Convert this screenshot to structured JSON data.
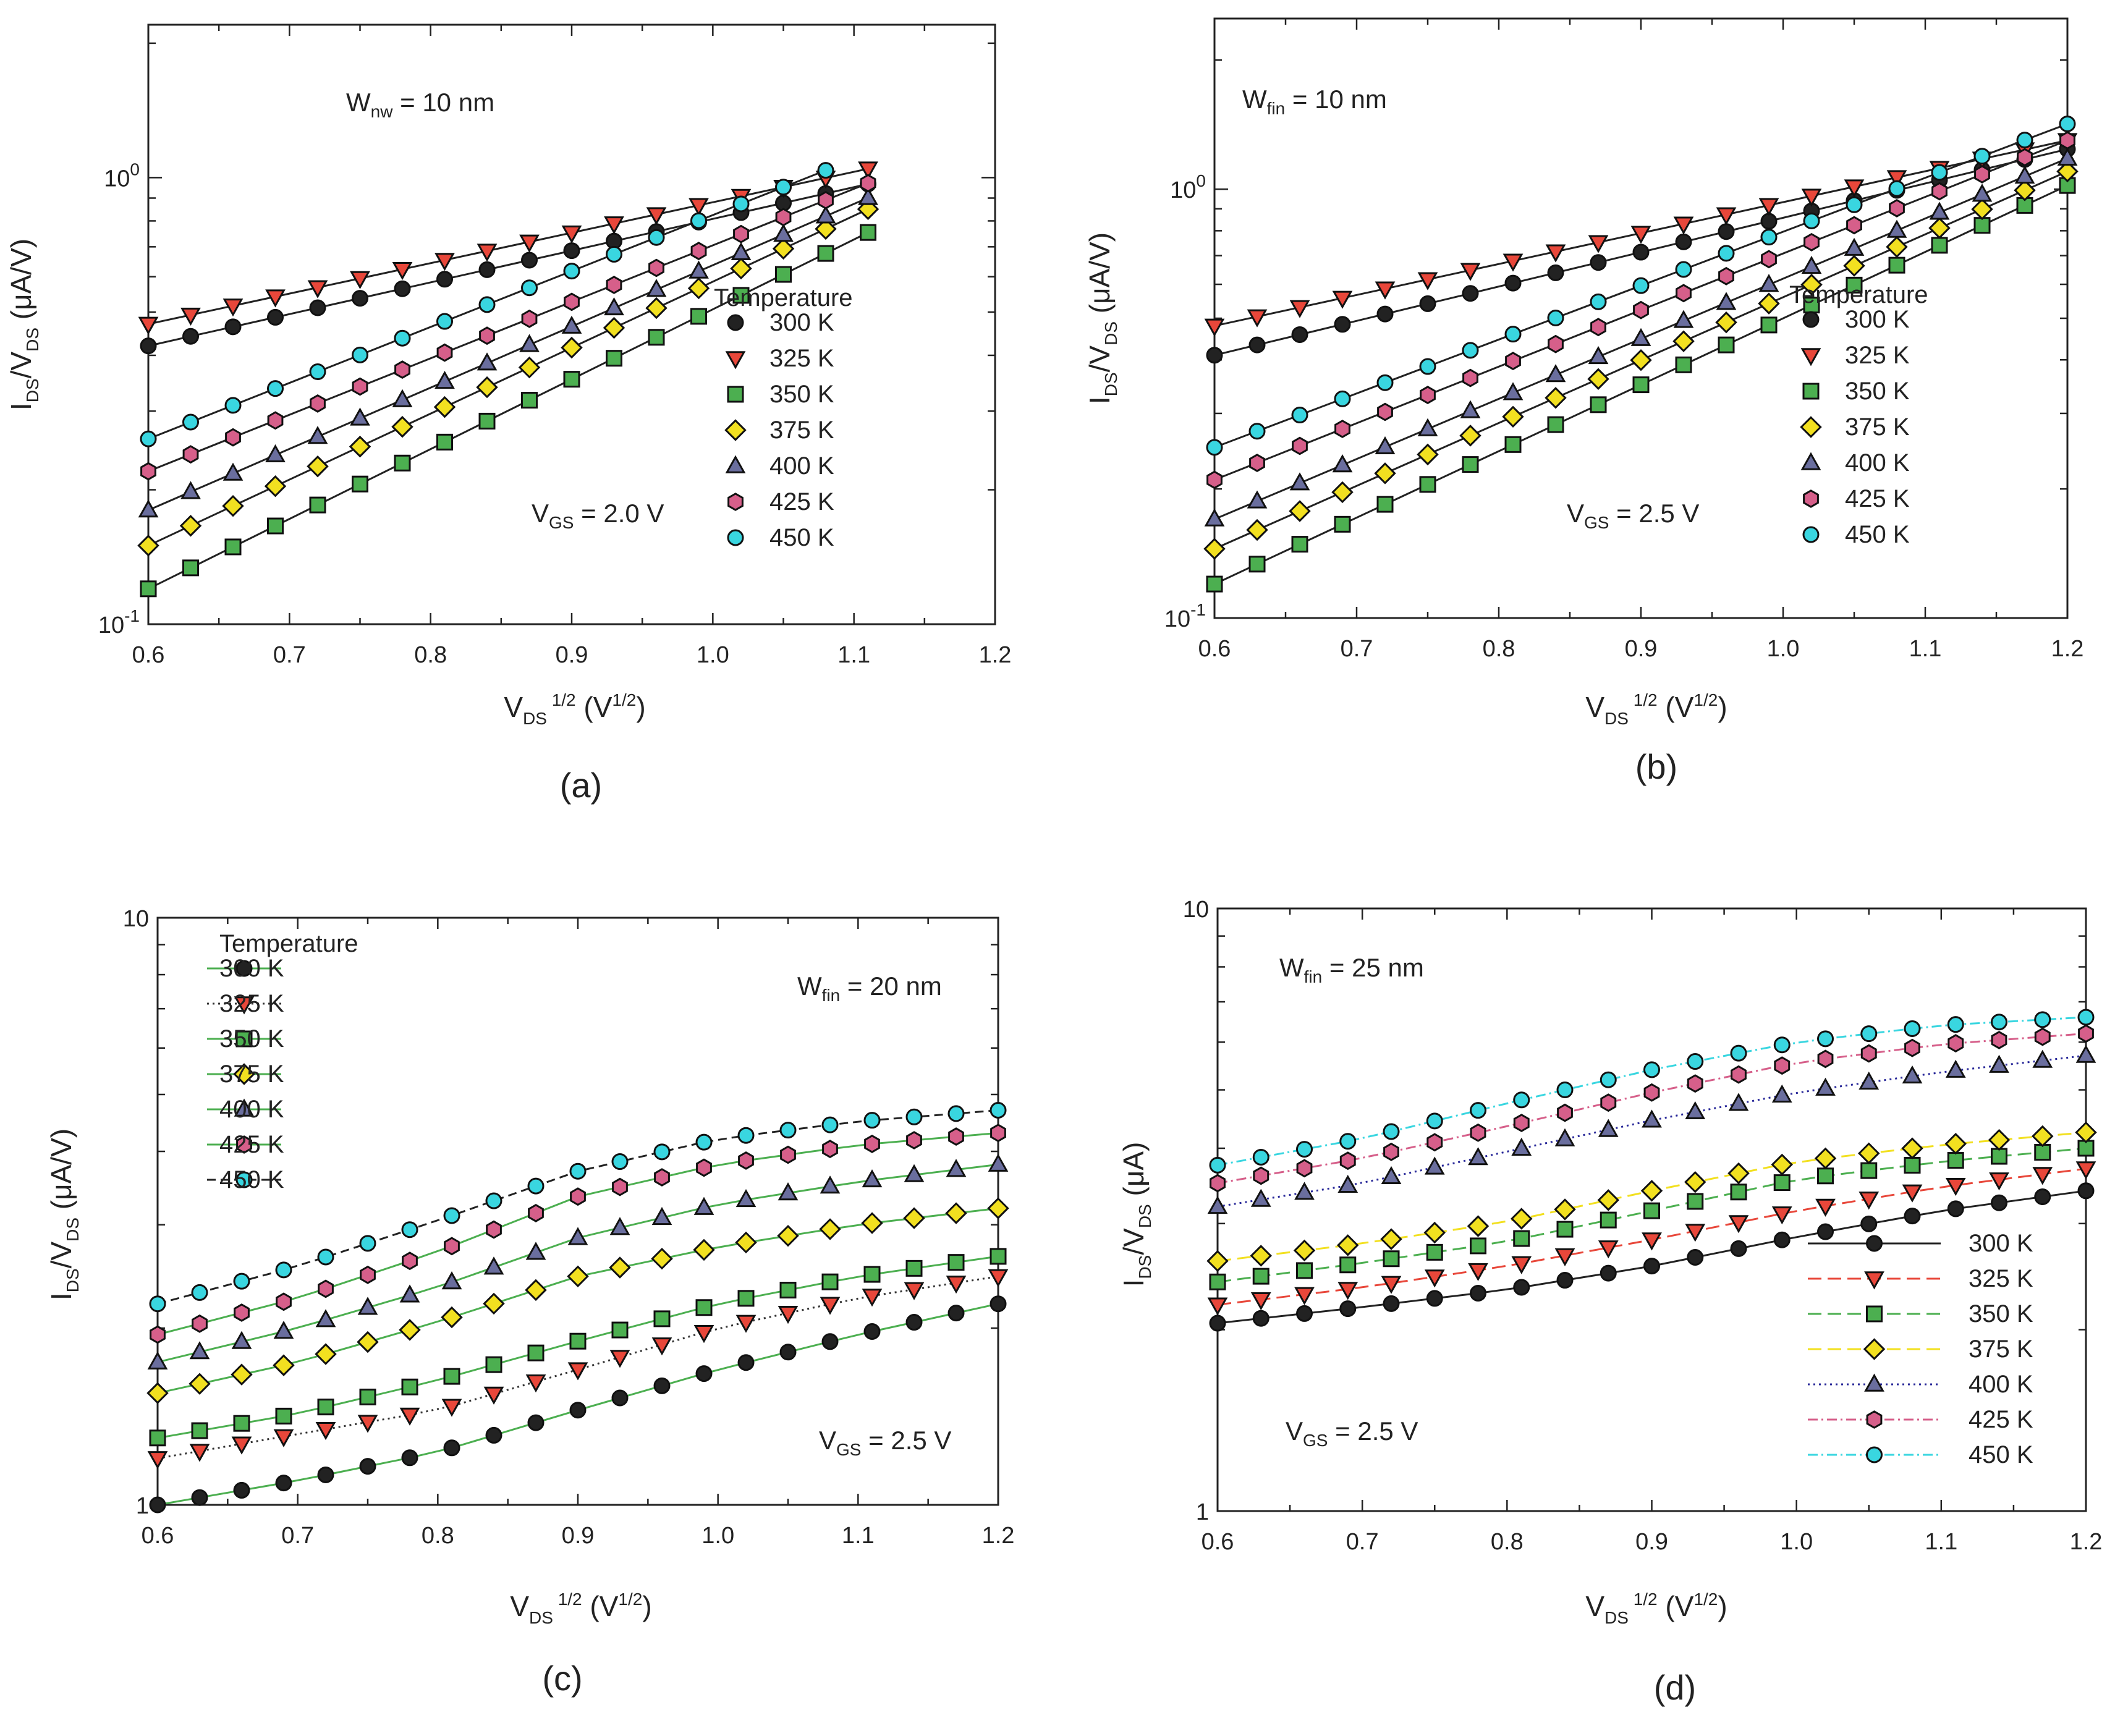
{
  "chart_data": [
    {
      "panel": "(a)",
      "type": "scatter",
      "yscale": "log",
      "xlim": [
        0.6,
        1.2
      ],
      "ylim": [
        0.1,
        2.2
      ],
      "x_ticks": [
        "0.6",
        "0.7",
        "0.8",
        "0.9",
        "1.0",
        "1.1",
        "1.2"
      ],
      "y_ticks": [
        {
          "value": 0.1,
          "base": "10",
          "exp": "-1"
        },
        {
          "value": 1,
          "base": "10",
          "exp": "0"
        }
      ],
      "xlabel": {
        "main": "V",
        "sub": "DS",
        "sup": "1/2",
        "unit": " (V",
        "unit_sup": "1/2",
        "close": ")"
      },
      "ylabel": {
        "a": "I",
        "a_sub": "DS",
        "b": "/V",
        "b_sub": "DS",
        "unit": " (μA/V)"
      },
      "annotations": [
        {
          "main": "W",
          "sub": "nw",
          "rest": " = 10 nm"
        },
        {
          "main": "V",
          "sub": "GS",
          "rest": " = 2.0 V"
        }
      ],
      "legend_title": "Temperature",
      "fit_lines": true,
      "series": [
        {
          "name": "300 K",
          "color": "#222222",
          "marker": "circle",
          "x_range": [
            0.6,
            1.13
          ],
          "values": [
            0.42,
            1.0
          ]
        },
        {
          "name": "325 K",
          "color": "#e8473a",
          "marker": "triangle-down",
          "x_range": [
            0.6,
            1.13
          ],
          "values": [
            0.47,
            1.08
          ]
        },
        {
          "name": "350 K",
          "color": "#4caf50",
          "marker": "square",
          "x_range": [
            0.6,
            1.13
          ],
          "values": [
            0.12,
            0.81
          ]
        },
        {
          "name": "375 K",
          "color": "#f2e020",
          "marker": "diamond",
          "x_range": [
            0.6,
            1.13
          ],
          "values": [
            0.15,
            0.91
          ]
        },
        {
          "name": "400 K",
          "color": "#6a6e9e",
          "marker": "triangle-up",
          "x_range": [
            0.6,
            1.13
          ],
          "values": [
            0.18,
            0.96
          ]
        },
        {
          "name": "425 K",
          "color": "#d65f8a",
          "marker": "hexagon",
          "x_range": [
            0.6,
            1.13
          ],
          "values": [
            0.22,
            1.03
          ]
        },
        {
          "name": "450 K",
          "color": "#39d6e0",
          "marker": "circle",
          "x_range": [
            0.6,
            1.1
          ],
          "values": [
            0.26,
            1.1
          ]
        }
      ]
    },
    {
      "panel": "(b)",
      "type": "scatter",
      "yscale": "log",
      "xlim": [
        0.6,
        1.2
      ],
      "ylim": [
        0.1,
        2.5
      ],
      "x_ticks": [
        "0.6",
        "0.7",
        "0.8",
        "0.9",
        "1.0",
        "1.1",
        "1.2"
      ],
      "y_ticks": [
        {
          "value": 0.1,
          "base": "10",
          "exp": "-1"
        },
        {
          "value": 1,
          "base": "10",
          "exp": "0"
        }
      ],
      "xlabel": {
        "main": "V",
        "sub": "DS",
        "sup": "1/2",
        "unit": " (V",
        "unit_sup": "1/2",
        "close": ")"
      },
      "ylabel": {
        "a": "I",
        "a_sub": "DS",
        "b": "/V",
        "b_sub": "DS",
        "unit": " (μA/V)"
      },
      "annotations": [
        {
          "main": "W",
          "sub": "fin",
          "rest": " = 10 nm"
        },
        {
          "main": "V",
          "sub": "GS",
          "rest": " = 2.5 V"
        }
      ],
      "legend_title": "Temperature",
      "fit_lines": true,
      "series": [
        {
          "name": "300 K",
          "color": "#222222",
          "marker": "circle",
          "x_range": [
            0.6,
            1.2
          ],
          "values": [
            0.41,
            1.24
          ]
        },
        {
          "name": "325 K",
          "color": "#e8473a",
          "marker": "triangle-down",
          "x_range": [
            0.6,
            1.2
          ],
          "values": [
            0.48,
            1.3
          ]
        },
        {
          "name": "350 K",
          "color": "#4caf50",
          "marker": "square",
          "x_range": [
            0.6,
            1.2
          ],
          "values": [
            0.12,
            1.02
          ]
        },
        {
          "name": "375 K",
          "color": "#f2e020",
          "marker": "diamond",
          "x_range": [
            0.6,
            1.2
          ],
          "values": [
            0.145,
            1.1
          ]
        },
        {
          "name": "400 K",
          "color": "#6a6e9e",
          "marker": "triangle-up",
          "x_range": [
            0.6,
            1.2
          ],
          "values": [
            0.17,
            1.18
          ]
        },
        {
          "name": "425 K",
          "color": "#d65f8a",
          "marker": "hexagon",
          "x_range": [
            0.6,
            1.2
          ],
          "values": [
            0.21,
            1.3
          ]
        },
        {
          "name": "450 K",
          "color": "#39d6e0",
          "marker": "circle",
          "x_range": [
            0.6,
            1.2
          ],
          "values": [
            0.25,
            1.42
          ]
        }
      ]
    },
    {
      "panel": "(c)",
      "type": "line",
      "yscale": "log",
      "xlim": [
        0.6,
        1.2
      ],
      "ylim": [
        1,
        10
      ],
      "x_ticks": [
        "0.6",
        "0.7",
        "0.8",
        "0.9",
        "1.0",
        "1.1",
        "1.2"
      ],
      "y_ticks": [
        {
          "value": 1,
          "base": "1",
          "exp": ""
        },
        {
          "value": 10,
          "base": "10",
          "exp": ""
        }
      ],
      "xlabel": {
        "main": "V",
        "sub": "DS",
        "sup": "1/2",
        "unit": " (V",
        "unit_sup": "1/2",
        "close": ")"
      },
      "ylabel": {
        "a": "I",
        "a_sub": "DS",
        "b": "/V",
        "b_sub": "DS",
        "unit": " (μA/V)"
      },
      "annotations": [
        {
          "main": "W",
          "sub": "fin",
          "rest": " = 20 nm"
        },
        {
          "main": "V",
          "sub": "GS",
          "rest": " = 2.5 V"
        }
      ],
      "legend_title": "Temperature",
      "fit_lines": false,
      "series": [
        {
          "name": "300 K",
          "color": "#222222",
          "marker": "circle",
          "line": "#4caf50",
          "dash": "",
          "x": [
            0.6,
            0.7,
            0.8,
            0.9,
            1.0,
            1.1,
            1.2
          ],
          "values": [
            1.0,
            1.1,
            1.23,
            1.45,
            1.7,
            1.95,
            2.2
          ]
        },
        {
          "name": "325 K",
          "color": "#e8473a",
          "marker": "triangle-down",
          "line": "#333333",
          "dash": "3,6",
          "x": [
            0.6,
            0.7,
            0.8,
            0.9,
            1.0,
            1.1,
            1.2
          ],
          "values": [
            1.2,
            1.32,
            1.45,
            1.7,
            2.0,
            2.25,
            2.45
          ]
        },
        {
          "name": "350 K",
          "color": "#4caf50",
          "marker": "square",
          "line": "#4caf50",
          "dash": "",
          "x": [
            0.6,
            0.7,
            0.8,
            0.9,
            1.0,
            1.1,
            1.2
          ],
          "values": [
            1.3,
            1.43,
            1.63,
            1.9,
            2.2,
            2.45,
            2.65
          ]
        },
        {
          "name": "375 K",
          "color": "#f2e020",
          "marker": "diamond",
          "line": "#4caf50",
          "dash": "",
          "x": [
            0.6,
            0.7,
            0.8,
            0.9,
            1.0,
            1.1,
            1.2
          ],
          "values": [
            1.55,
            1.75,
            2.05,
            2.45,
            2.75,
            3.0,
            3.2
          ]
        },
        {
          "name": "400 K",
          "color": "#6a6e9e",
          "marker": "triangle-up",
          "line": "#4caf50",
          "dash": "",
          "x": [
            0.6,
            0.7,
            0.8,
            0.9,
            1.0,
            1.1,
            1.2
          ],
          "values": [
            1.75,
            2.0,
            2.35,
            2.85,
            3.25,
            3.55,
            3.8
          ]
        },
        {
          "name": "425 K",
          "color": "#d65f8a",
          "marker": "hexagon",
          "line": "#4caf50",
          "dash": "",
          "x": [
            0.6,
            0.7,
            0.8,
            0.9,
            1.0,
            1.1,
            1.2
          ],
          "values": [
            1.95,
            2.25,
            2.7,
            3.35,
            3.8,
            4.1,
            4.3
          ]
        },
        {
          "name": "450 K",
          "color": "#39d6e0",
          "marker": "circle",
          "line": "#222222",
          "dash": "14,8",
          "x": [
            0.6,
            0.7,
            0.8,
            0.9,
            1.0,
            1.1,
            1.2
          ],
          "values": [
            2.2,
            2.55,
            3.05,
            3.7,
            4.2,
            4.5,
            4.7
          ]
        }
      ]
    },
    {
      "panel": "(d)",
      "type": "line",
      "yscale": "log",
      "xlim": [
        0.6,
        1.2
      ],
      "ylim": [
        1,
        10
      ],
      "x_ticks": [
        "0.6",
        "0.7",
        "0.8",
        "0.9",
        "1.0",
        "1.1",
        "1.2"
      ],
      "y_ticks": [
        {
          "value": 1,
          "base": "1",
          "exp": ""
        },
        {
          "value": 10,
          "base": "10",
          "exp": ""
        }
      ],
      "xlabel": {
        "main": "V",
        "sub": "DS",
        "sup": "1/2",
        "unit": " (V",
        "unit_sup": "1/2",
        "close": ")"
      },
      "ylabel": {
        "a": "I",
        "a_sub": "DS",
        "b": "/V",
        "b_sub": "DS",
        "unit": " (μA)"
      },
      "annotations": [
        {
          "main": "W",
          "sub": "fin",
          "rest": " = 25 nm"
        },
        {
          "main": "V",
          "sub": "GS",
          "rest": " = 2.5 V"
        }
      ],
      "legend_title": "",
      "fit_lines": false,
      "series": [
        {
          "name": "300 K",
          "color": "#222222",
          "marker": "circle",
          "line": "#222222",
          "dash": "",
          "x": [
            0.6,
            0.7,
            0.8,
            0.9,
            1.0,
            1.1,
            1.2
          ],
          "values": [
            2.05,
            2.18,
            2.33,
            2.55,
            2.85,
            3.15,
            3.4
          ]
        },
        {
          "name": "325 K",
          "color": "#e8473a",
          "marker": "triangle-down",
          "line": "#e8473a",
          "dash": "22,10",
          "x": [
            0.6,
            0.7,
            0.8,
            0.9,
            1.0,
            1.1,
            1.2
          ],
          "values": [
            2.2,
            2.35,
            2.55,
            2.82,
            3.15,
            3.45,
            3.7
          ]
        },
        {
          "name": "350 K",
          "color": "#4caf50",
          "marker": "square",
          "line": "#4caf50",
          "dash": "22,10",
          "x": [
            0.6,
            0.7,
            0.8,
            0.9,
            1.0,
            1.1,
            1.2
          ],
          "values": [
            2.4,
            2.58,
            2.8,
            3.15,
            3.55,
            3.8,
            4.0
          ]
        },
        {
          "name": "375 K",
          "color": "#f2e020",
          "marker": "diamond",
          "line": "#f2e020",
          "dash": "22,10",
          "x": [
            0.6,
            0.7,
            0.8,
            0.9,
            1.0,
            1.1,
            1.2
          ],
          "values": [
            2.6,
            2.78,
            3.02,
            3.4,
            3.8,
            4.05,
            4.25
          ]
        },
        {
          "name": "400 K",
          "color": "#6a6e9e",
          "marker": "triangle-up",
          "line": "#2a2a9a",
          "dash": "3,6",
          "x": [
            0.6,
            0.7,
            0.8,
            0.9,
            1.0,
            1.1,
            1.2
          ],
          "values": [
            3.2,
            3.5,
            3.95,
            4.45,
            4.95,
            5.35,
            5.7
          ]
        },
        {
          "name": "425 K",
          "color": "#d65f8a",
          "marker": "hexagon",
          "line": "#d65f8a",
          "dash": "16,6,3,6",
          "x": [
            0.6,
            0.7,
            0.8,
            0.9,
            1.0,
            1.1,
            1.2
          ],
          "values": [
            3.5,
            3.85,
            4.35,
            4.95,
            5.55,
            5.95,
            6.2
          ]
        },
        {
          "name": "450 K",
          "color": "#39d6e0",
          "marker": "circle",
          "line": "#39d6e0",
          "dash": "16,6,3,6",
          "x": [
            0.6,
            0.7,
            0.8,
            0.9,
            1.0,
            1.1,
            1.2
          ],
          "values": [
            3.75,
            4.15,
            4.75,
            5.4,
            6.0,
            6.4,
            6.6
          ]
        }
      ]
    }
  ]
}
